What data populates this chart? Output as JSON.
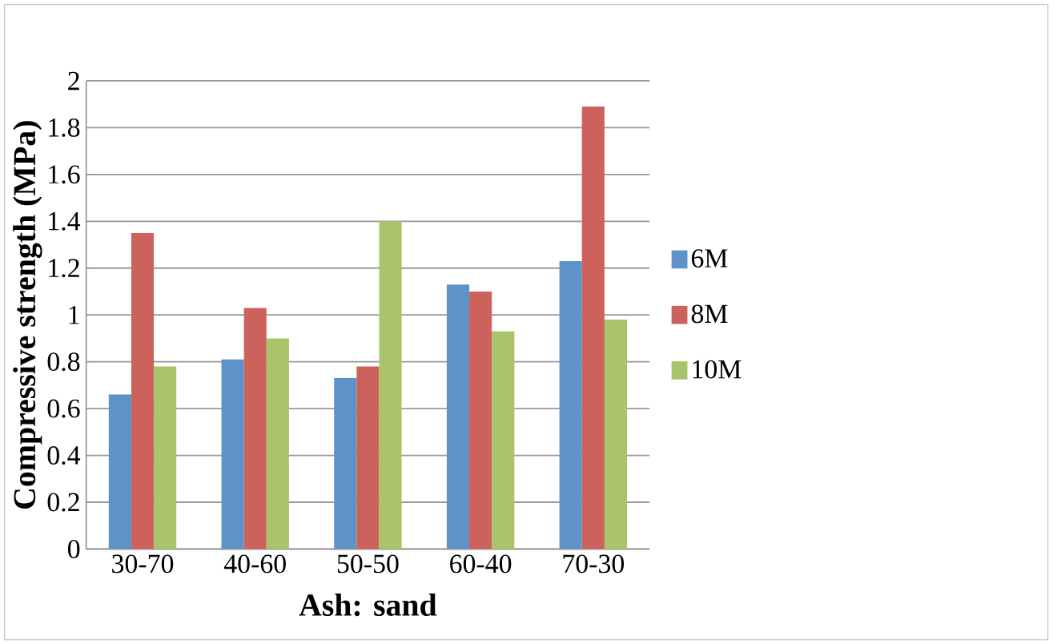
{
  "chart_data": {
    "type": "bar",
    "xlabel": "Ash: sand",
    "ylabel": "Compressive strength (MPa)",
    "categories": [
      "30-70",
      "40-60",
      "50-50",
      "60-40",
      "70-30"
    ],
    "series": [
      {
        "name": "6M",
        "color": "#5e93c9",
        "values": [
          0.66,
          0.81,
          0.73,
          1.13,
          1.23
        ]
      },
      {
        "name": "8M",
        "color": "#cd625c",
        "values": [
          1.35,
          1.03,
          0.78,
          1.1,
          1.89
        ]
      },
      {
        "name": "10M",
        "color": "#a9c46a",
        "values": [
          0.78,
          0.9,
          1.4,
          0.93,
          0.98
        ]
      }
    ],
    "ylim": [
      0,
      2
    ],
    "yticks": [
      0,
      0.2,
      0.4,
      0.6,
      0.8,
      1,
      1.2,
      1.4,
      1.6,
      1.8,
      2
    ],
    "grid": "y",
    "legend": "right"
  }
}
